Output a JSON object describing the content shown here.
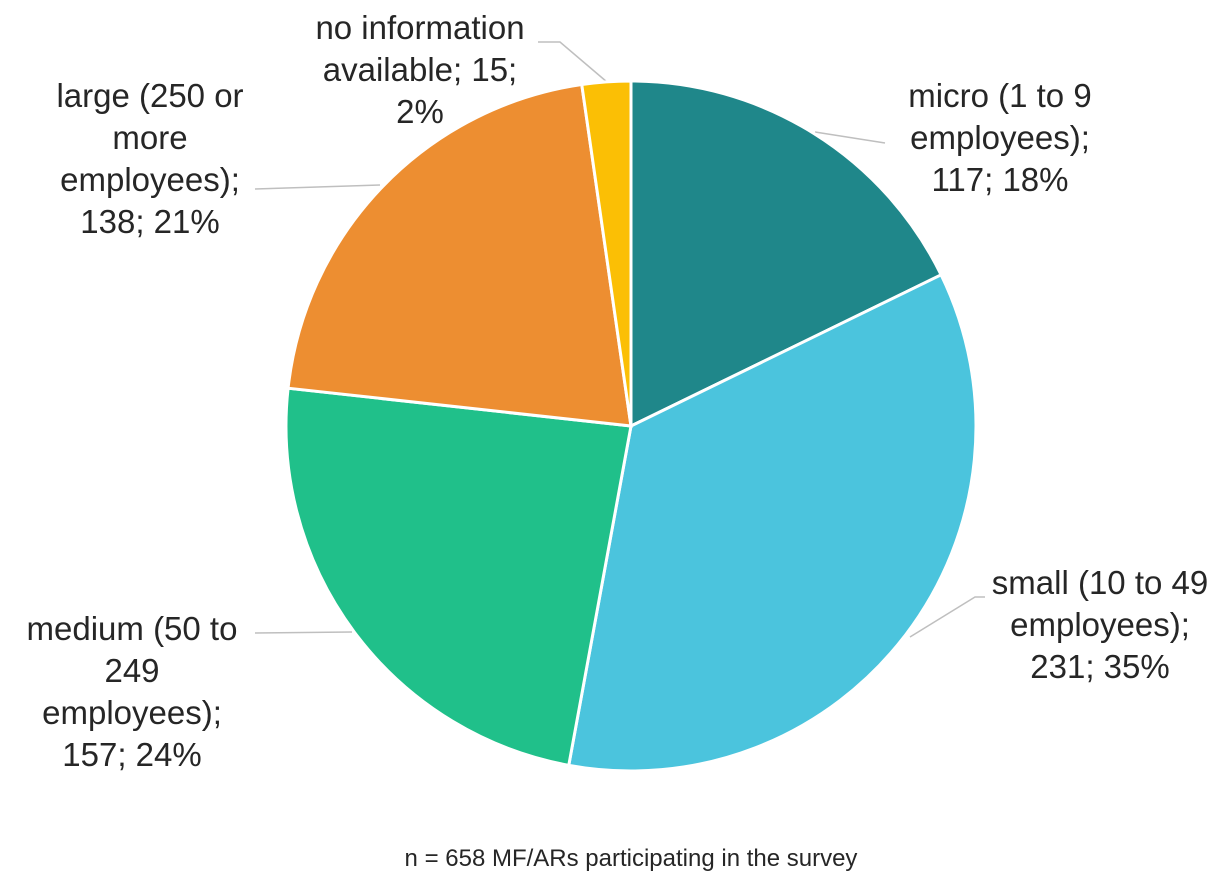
{
  "chart_data": {
    "type": "pie",
    "values": [
      117,
      231,
      157,
      138,
      15
    ],
    "value_labels": [
      "micro (1 to 9 employees); 117; 18%",
      "small (10 to 49 employees); 231; 35%",
      "medium (50 to 249 employees); 157; 24%",
      "large (250 or more employees); 138; 21%",
      "no information available; 15; 2%"
    ],
    "colors": [
      "#1f878a",
      "#4bc4dd",
      "#20c08a",
      "#ed8e31",
      "#fbbf05"
    ],
    "note": "n = 658 MF/ARs participating in the survey"
  }
}
